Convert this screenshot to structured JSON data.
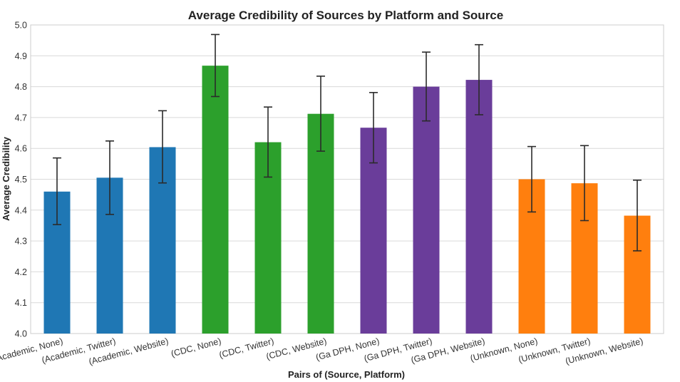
{
  "chart_data": {
    "type": "bar",
    "title": "Average Credibility of Sources by Platform and Source",
    "xlabel": "Pairs of (Source, Platform)",
    "ylabel": "Average Credibility",
    "ylim": [
      4.0,
      5.0
    ],
    "yticks": [
      "4.0",
      "4.1",
      "4.2",
      "4.3",
      "4.4",
      "4.5",
      "4.6",
      "4.7",
      "4.8",
      "4.9",
      "5.0"
    ],
    "grid": true,
    "categories": [
      "(Academic, None)",
      "(Academic, Twitter)",
      "(Academic, Website)",
      "(CDC, None)",
      "(CDC, Twitter)",
      "(CDC, Website)",
      "(Ga DPH, None)",
      "(Ga DPH, Twitter)",
      "(Ga DPH, Website)",
      "(Unknown, None)",
      "(Unknown, Twitter)",
      "(Unknown, Website)"
    ],
    "values": [
      4.46,
      4.505,
      4.604,
      4.868,
      4.62,
      4.712,
      4.667,
      4.8,
      4.822,
      4.5,
      4.487,
      4.382
    ],
    "error_low": [
      4.353,
      4.386,
      4.488,
      4.768,
      4.507,
      4.591,
      4.553,
      4.689,
      4.709,
      4.394,
      4.366,
      4.268
    ],
    "error_high": [
      4.569,
      4.624,
      4.722,
      4.969,
      4.734,
      4.834,
      4.781,
      4.912,
      4.936,
      4.606,
      4.609,
      4.497
    ],
    "colors": [
      "#1f77b4",
      "#1f77b4",
      "#1f77b4",
      "#2ca02c",
      "#2ca02c",
      "#2ca02c",
      "#6a3d9a",
      "#6a3d9a",
      "#6a3d9a",
      "#ff7f0e",
      "#ff7f0e",
      "#ff7f0e"
    ]
  }
}
